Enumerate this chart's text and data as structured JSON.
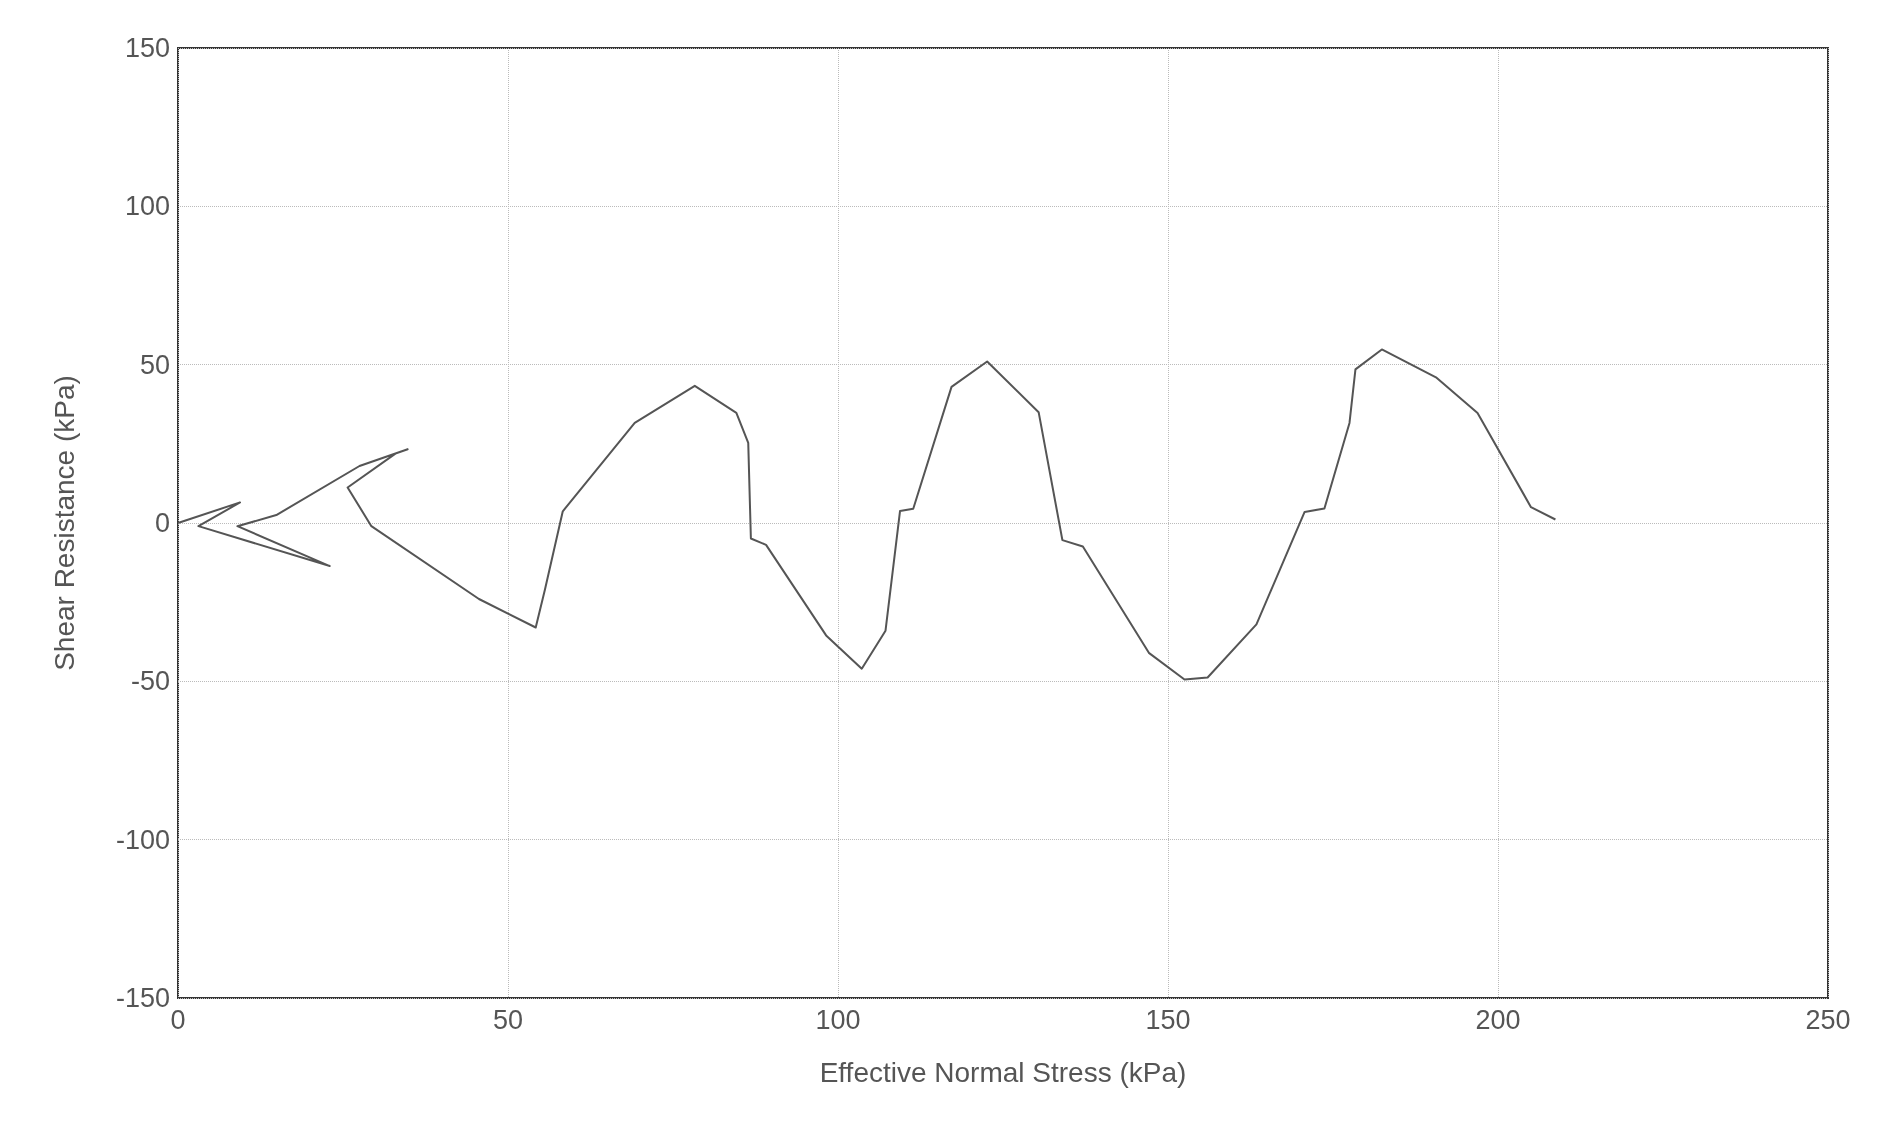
{
  "chart_data": {
    "type": "line",
    "xlabel": "Effective Normal Stress (kPa)",
    "ylabel": "Shear Resistance (kPa)",
    "xlim": [
      0,
      250
    ],
    "xticks": [
      0,
      50,
      100,
      150,
      200,
      250
    ],
    "ylim": [
      -150,
      150
    ],
    "yticks": [
      -150,
      -100,
      -50,
      0,
      50,
      100,
      150
    ],
    "grid": true,
    "marker": "none",
    "line_style": "solid",
    "series": [
      {
        "color": "#555555",
        "x": [
          0,
          9.4,
          3.1,
          23,
          9,
          14.9,
          27.5,
          34.8,
          33,
          25.7,
          29.3,
          45.6,
          54.2,
          55.6,
          58.3,
          69.2,
          78.3,
          84.6,
          86.4,
          86.8,
          89.1,
          98.2,
          103.6,
          107.2,
          109.4,
          111.4,
          117.2,
          122.6,
          130.4,
          134,
          137.1,
          147.1,
          152.5,
          156,
          163.4,
          170.7,
          173.7,
          177.5,
          178.4,
          182.4,
          190.6,
          196.9,
          205,
          208.7
        ],
        "values": [
          0,
          6.5,
          -1,
          -13.6,
          -1,
          2.5,
          18,
          23.3,
          22,
          11.2,
          -1,
          -24,
          -33,
          -21,
          3.7,
          31.6,
          43.3,
          34.8,
          25.3,
          -4.9,
          -6.9,
          -35.5,
          -46,
          -34,
          3.8,
          4.5,
          43,
          51,
          35,
          -5.4,
          -7.4,
          -41,
          -49.4,
          -48.8,
          -32,
          3.5,
          4.6,
          31.6,
          48.5,
          54.8,
          46,
          34.7,
          5,
          1.1
        ]
      }
    ]
  }
}
